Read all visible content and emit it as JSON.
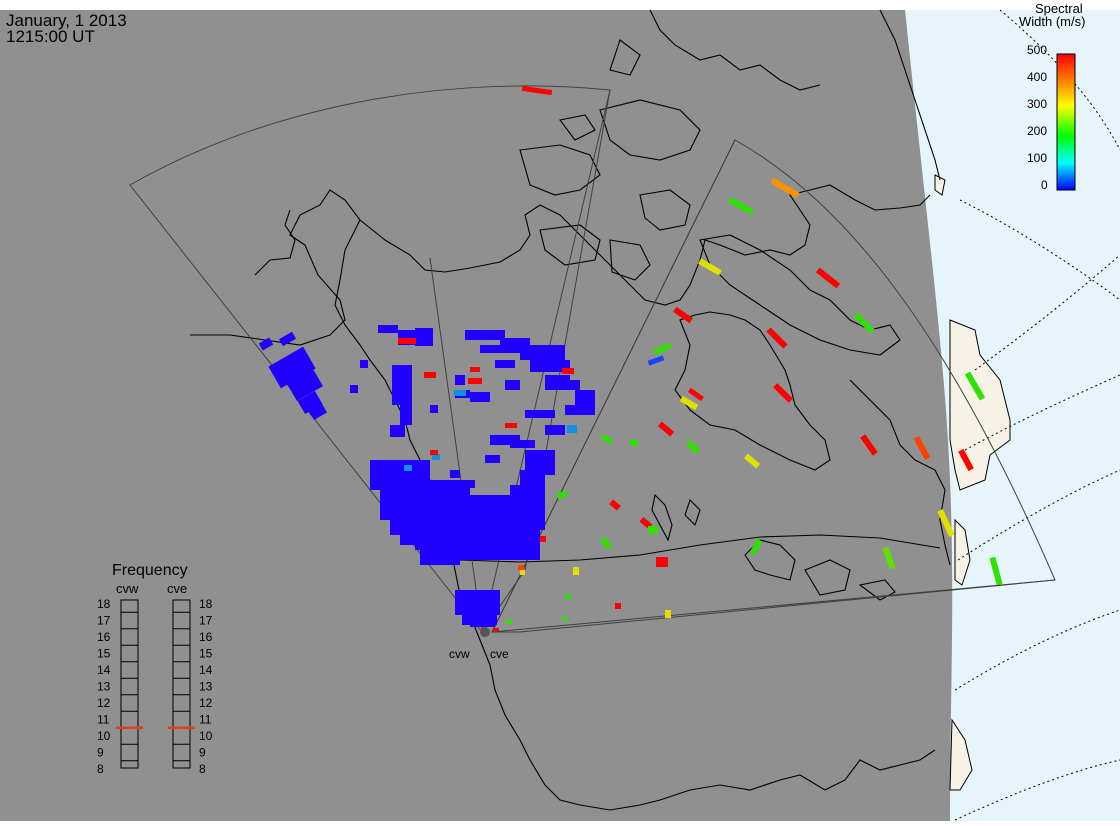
{
  "header": {
    "date": "January, 1 2013",
    "time": "1215:00 UT"
  },
  "colorbar": {
    "title_line1": "Spectral",
    "title_line2": "Width (m/s)",
    "ticks": [
      "500",
      "400",
      "300",
      "200",
      "100",
      "0"
    ],
    "colors": [
      "#ff0000",
      "#ff8000",
      "#ffff00",
      "#00ff00",
      "#00ffff",
      "#0000ff"
    ]
  },
  "frequency": {
    "title": "Frequency",
    "radar_left": "cvw",
    "radar_right": "cve",
    "levels": [
      "18",
      "17",
      "16",
      "15",
      "14",
      "13",
      "12",
      "11",
      "10",
      "9",
      "8"
    ],
    "left_value": 10.5,
    "right_value": 10.5,
    "marker_color": "#e0401a"
  },
  "map": {
    "ocean_color": "#909090",
    "land_outline_color": "#000000",
    "night_side_color": "#e6f4fb",
    "terminator_land_color": "#f6f2e6",
    "radar_labels": [
      "cvw",
      "cve"
    ]
  }
}
